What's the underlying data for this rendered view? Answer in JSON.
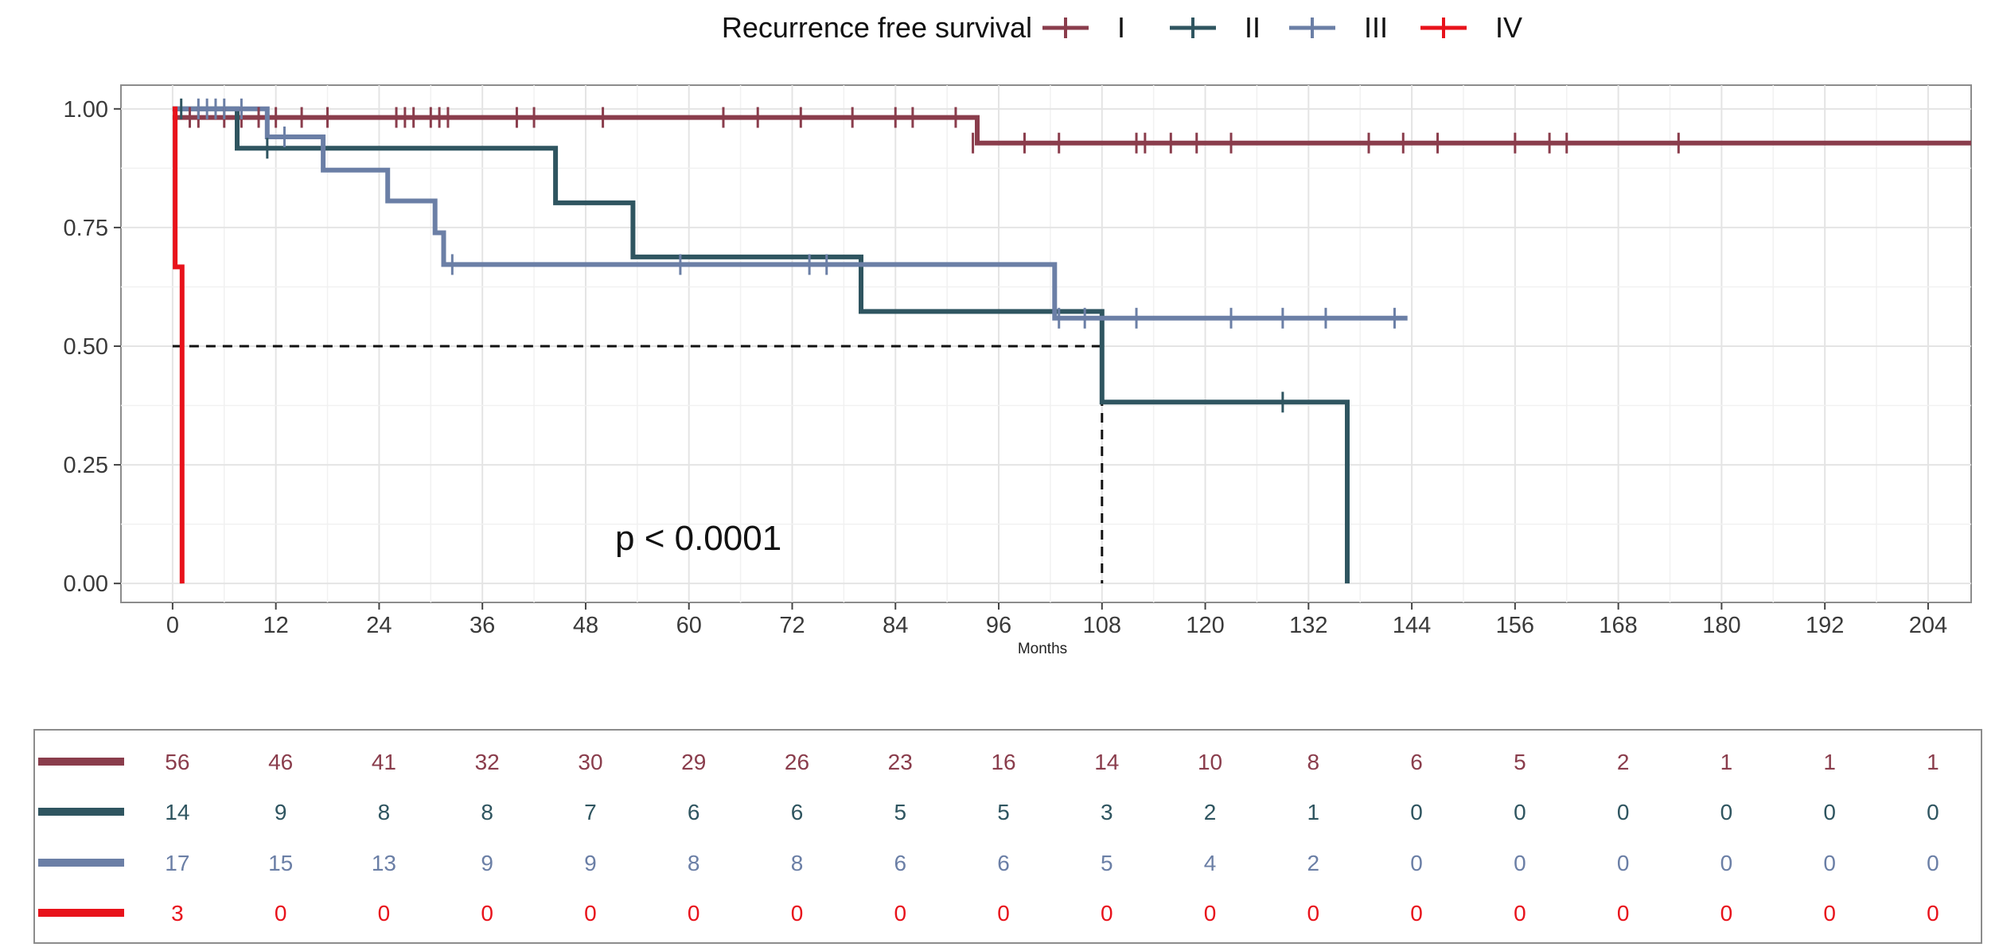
{
  "chart_data": {
    "type": "kaplan-meier survival curve",
    "legend_title": "Recurrence free survival",
    "xlabel": "Months",
    "ylabel": "",
    "xlim": [
      -6,
      209
    ],
    "ylim": [
      -0.04,
      1.05
    ],
    "x_ticks": [
      0,
      12,
      24,
      36,
      48,
      60,
      72,
      84,
      96,
      108,
      120,
      132,
      144,
      156,
      168,
      180,
      192,
      204
    ],
    "y_ticks": [
      0.0,
      0.25,
      0.5,
      0.75,
      1.0
    ],
    "y_tick_labels": [
      "0.00",
      "0.25",
      "0.50",
      "0.75",
      "1.00"
    ],
    "annotation": "p < 0.0001",
    "median_survival": {
      "x": 108,
      "y": 0.5,
      "ivx": 1
    },
    "series": [
      {
        "name": "I",
        "color": "#8a3d4c",
        "steps": [
          [
            0,
            0.982
          ],
          [
            93.5,
            0.982
          ],
          [
            93.5,
            0.928
          ],
          [
            209,
            0.928
          ]
        ],
        "censor": [
          [
            2,
            0.982
          ],
          [
            3,
            0.982
          ],
          [
            6,
            0.982
          ],
          [
            8,
            0.982
          ],
          [
            10,
            0.982
          ],
          [
            12,
            0.982
          ],
          [
            15,
            0.982
          ],
          [
            18,
            0.982
          ],
          [
            26,
            0.982
          ],
          [
            27,
            0.982
          ],
          [
            28,
            0.982
          ],
          [
            30,
            0.982
          ],
          [
            31,
            0.982
          ],
          [
            32,
            0.982
          ],
          [
            40,
            0.982
          ],
          [
            42,
            0.982
          ],
          [
            50,
            0.982
          ],
          [
            64,
            0.982
          ],
          [
            68,
            0.982
          ],
          [
            73,
            0.982
          ],
          [
            79,
            0.982
          ],
          [
            84,
            0.982
          ],
          [
            86,
            0.982
          ],
          [
            91,
            0.982
          ],
          [
            93,
            0.928
          ],
          [
            99,
            0.928
          ],
          [
            103,
            0.928
          ],
          [
            112,
            0.928
          ],
          [
            113,
            0.928
          ],
          [
            116,
            0.928
          ],
          [
            119,
            0.928
          ],
          [
            123,
            0.928
          ],
          [
            139,
            0.928
          ],
          [
            143,
            0.928
          ],
          [
            147,
            0.928
          ],
          [
            156,
            0.928
          ],
          [
            160,
            0.928
          ],
          [
            162,
            0.928
          ],
          [
            175,
            0.928
          ]
        ]
      },
      {
        "name": "II",
        "color": "#2f5560",
        "steps": [
          [
            0,
            1.0
          ],
          [
            7.5,
            1.0
          ],
          [
            7.5,
            0.917
          ],
          [
            44.5,
            0.917
          ],
          [
            44.5,
            0.802
          ],
          [
            53.5,
            0.802
          ],
          [
            53.5,
            0.688
          ],
          [
            80,
            0.688
          ],
          [
            80,
            0.573
          ],
          [
            108,
            0.573
          ],
          [
            108,
            0.382
          ],
          [
            136.5,
            0.382
          ],
          [
            136.5,
            0.0
          ]
        ],
        "censor": [
          [
            1,
            1.0
          ],
          [
            11,
            0.917
          ],
          [
            129,
            0.382
          ]
        ]
      },
      {
        "name": "III",
        "color": "#6b7fa6",
        "steps": [
          [
            0,
            1.0
          ],
          [
            11,
            1.0
          ],
          [
            11,
            0.941
          ],
          [
            17.5,
            0.941
          ],
          [
            17.5,
            0.871
          ],
          [
            25,
            0.871
          ],
          [
            25,
            0.806
          ],
          [
            30.5,
            0.806
          ],
          [
            30.5,
            0.739
          ],
          [
            31.5,
            0.739
          ],
          [
            31.5,
            0.672
          ],
          [
            102.5,
            0.672
          ],
          [
            102.5,
            0.559
          ],
          [
            143.5,
            0.559
          ]
        ],
        "censor": [
          [
            3,
            1.0
          ],
          [
            4,
            1.0
          ],
          [
            5,
            1.0
          ],
          [
            6,
            1.0
          ],
          [
            8,
            1.0
          ],
          [
            13,
            0.941
          ],
          [
            32.5,
            0.672
          ],
          [
            59,
            0.672
          ],
          [
            74,
            0.672
          ],
          [
            76,
            0.672
          ],
          [
            103,
            0.559
          ],
          [
            106,
            0.559
          ],
          [
            112,
            0.559
          ],
          [
            123,
            0.559
          ],
          [
            129,
            0.559
          ],
          [
            134,
            0.559
          ],
          [
            142,
            0.559
          ]
        ]
      },
      {
        "name": "IV",
        "color": "#e8121b",
        "steps": [
          [
            0,
            1.0
          ],
          [
            0.3,
            1.0
          ],
          [
            0.3,
            0.667
          ],
          [
            1.1,
            0.667
          ],
          [
            1.1,
            0.0
          ]
        ],
        "censor": []
      }
    ],
    "risk_table": {
      "rows": [
        {
          "name": "I",
          "color": "#8a3d4c",
          "values": [
            56,
            46,
            41,
            32,
            30,
            29,
            26,
            23,
            16,
            14,
            10,
            8,
            6,
            5,
            2,
            1,
            1,
            1
          ]
        },
        {
          "name": "II",
          "color": "#2f5560",
          "values": [
            14,
            9,
            8,
            8,
            7,
            6,
            6,
            5,
            5,
            3,
            2,
            1,
            0,
            0,
            0,
            0,
            0,
            0
          ]
        },
        {
          "name": "III",
          "color": "#6b7fa6",
          "values": [
            17,
            15,
            13,
            9,
            9,
            8,
            8,
            6,
            6,
            5,
            4,
            2,
            0,
            0,
            0,
            0,
            0,
            0
          ]
        },
        {
          "name": "IV",
          "color": "#e8121b",
          "values": [
            3,
            0,
            0,
            0,
            0,
            0,
            0,
            0,
            0,
            0,
            0,
            0,
            0,
            0,
            0,
            0,
            0,
            0
          ]
        }
      ]
    }
  }
}
